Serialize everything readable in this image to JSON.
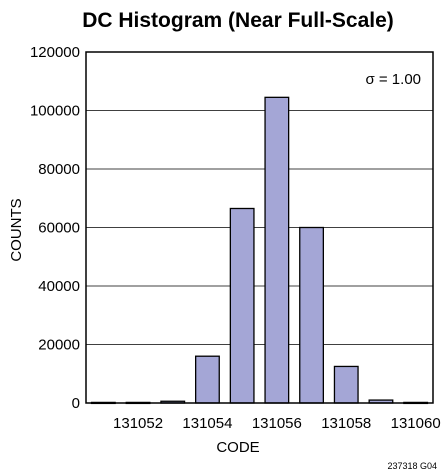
{
  "chart_data": {
    "type": "bar",
    "title": "DC Histogram (Near Full-Scale)",
    "xlabel": "CODE",
    "ylabel": "COUNTS",
    "x": [
      131051,
      131052,
      131053,
      131054,
      131055,
      131056,
      131057,
      131058,
      131059,
      131060
    ],
    "values": [
      200,
      200,
      600,
      16000,
      66500,
      104500,
      60000,
      12500,
      1000,
      200
    ],
    "xlim": [
      131050.5,
      131060.5
    ],
    "ylim": [
      0,
      120000
    ],
    "x_ticks": [
      131052,
      131054,
      131056,
      131058,
      131060
    ],
    "x_tick_labels": [
      "131052",
      "131054",
      "131056",
      "131058",
      "131060"
    ],
    "y_ticks": [
      0,
      20000,
      40000,
      60000,
      80000,
      100000,
      120000
    ],
    "y_tick_labels": [
      "0",
      "20000",
      "40000",
      "60000",
      "80000",
      "100000",
      "120000"
    ],
    "grid": "horizontal",
    "bar_color": "#a4a6d6",
    "annotation": "σ = 1.00",
    "figure_id": "237318 G04"
  }
}
